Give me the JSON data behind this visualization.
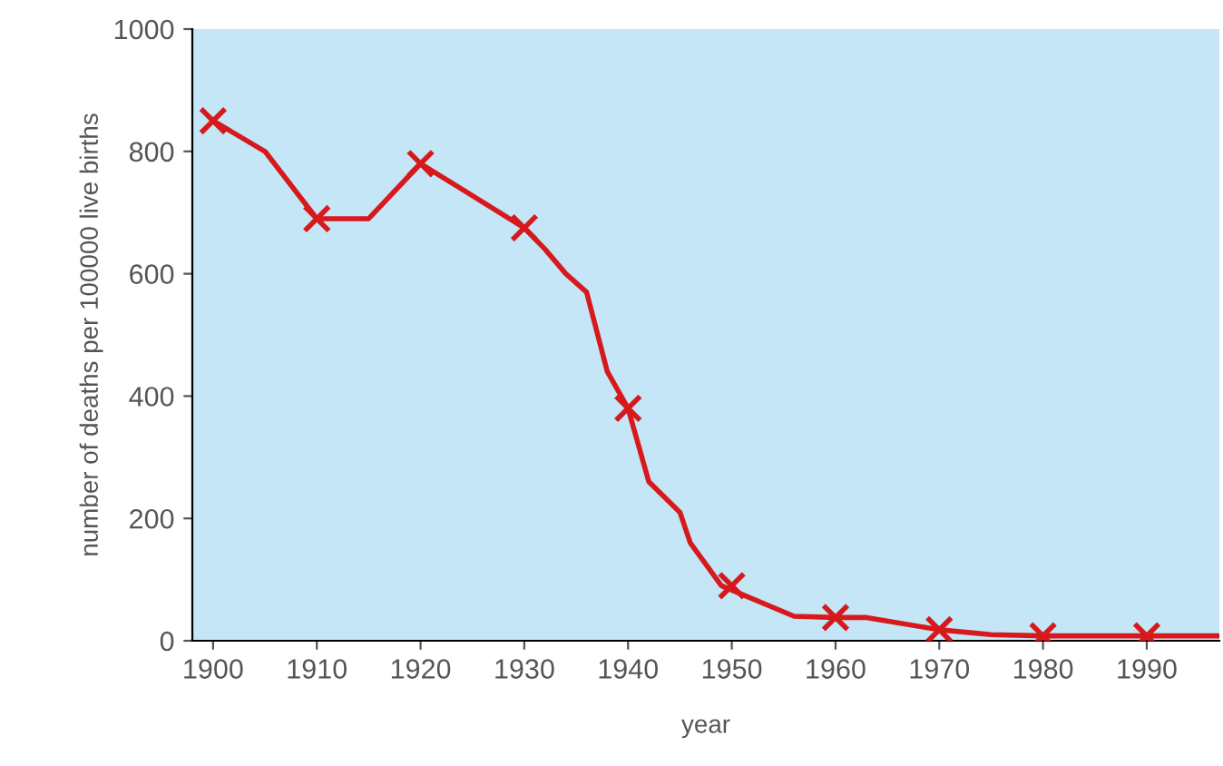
{
  "chart_data": {
    "type": "line",
    "xlabel": "year",
    "ylabel": "number of deaths per 100000 live births",
    "xlim": [
      1898,
      1997
    ],
    "ylim": [
      0,
      1000
    ],
    "xticks": [
      1900,
      1910,
      1920,
      1930,
      1940,
      1950,
      1960,
      1970,
      1980,
      1990
    ],
    "yticks": [
      0,
      200,
      400,
      600,
      800,
      1000
    ],
    "grid": false,
    "legend": false,
    "series": [
      {
        "color": "#d7191c",
        "marker": "none",
        "x": [
          1900,
          1905,
          1910,
          1915,
          1920,
          1930,
          1932,
          1934,
          1936,
          1938,
          1940,
          1942,
          1945,
          1946,
          1949,
          1956,
          1960,
          1963,
          1970,
          1975,
          1980,
          1990,
          1997
        ],
        "values": [
          850,
          800,
          690,
          690,
          780,
          675,
          640,
          600,
          570,
          440,
          380,
          260,
          210,
          160,
          90,
          40,
          38,
          38,
          18,
          10,
          8,
          8,
          8
        ]
      },
      {
        "type": "scatter",
        "color": "#d7191c",
        "marker": "cross",
        "x": [
          1900,
          1910,
          1920,
          1930,
          1940,
          1950,
          1960,
          1970,
          1980,
          1990
        ],
        "values": [
          850,
          690,
          780,
          675,
          380,
          90,
          38,
          18,
          8,
          8
        ]
      }
    ]
  }
}
